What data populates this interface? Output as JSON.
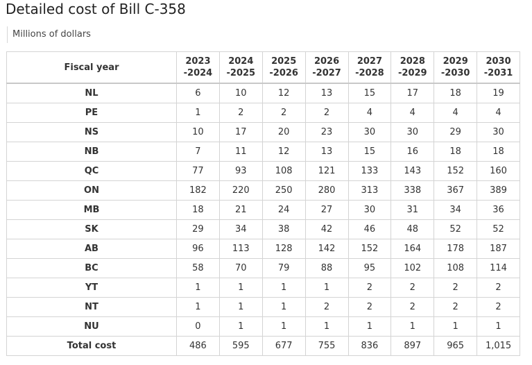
{
  "title": "Detailed cost of Bill C-358",
  "subtitle": "Millions of dollars",
  "table": {
    "header_label": "Fiscal year",
    "years": [
      [
        "2023",
        "-2024"
      ],
      [
        "2024",
        "-2025"
      ],
      [
        "2025",
        "-2026"
      ],
      [
        "2026",
        "-2027"
      ],
      [
        "2027",
        "-2028"
      ],
      [
        "2028",
        "-2029"
      ],
      [
        "2029",
        "-2030"
      ],
      [
        "2030",
        "-2031"
      ]
    ],
    "rows": [
      {
        "label": "NL",
        "values": [
          "6",
          "10",
          "12",
          "13",
          "15",
          "17",
          "18",
          "19"
        ]
      },
      {
        "label": "PE",
        "values": [
          "1",
          "2",
          "2",
          "2",
          "4",
          "4",
          "4",
          "4"
        ]
      },
      {
        "label": "NS",
        "values": [
          "10",
          "17",
          "20",
          "23",
          "30",
          "30",
          "29",
          "30"
        ]
      },
      {
        "label": "NB",
        "values": [
          "7",
          "11",
          "12",
          "13",
          "15",
          "16",
          "18",
          "18"
        ]
      },
      {
        "label": "QC",
        "values": [
          "77",
          "93",
          "108",
          "121",
          "133",
          "143",
          "152",
          "160"
        ]
      },
      {
        "label": "ON",
        "values": [
          "182",
          "220",
          "250",
          "280",
          "313",
          "338",
          "367",
          "389"
        ]
      },
      {
        "label": "MB",
        "values": [
          "18",
          "21",
          "24",
          "27",
          "30",
          "31",
          "34",
          "36"
        ]
      },
      {
        "label": "SK",
        "values": [
          "29",
          "34",
          "38",
          "42",
          "46",
          "48",
          "52",
          "52"
        ]
      },
      {
        "label": "AB",
        "values": [
          "96",
          "113",
          "128",
          "142",
          "152",
          "164",
          "178",
          "187"
        ]
      },
      {
        "label": "BC",
        "values": [
          "58",
          "70",
          "79",
          "88",
          "95",
          "102",
          "108",
          "114"
        ]
      },
      {
        "label": "YT",
        "values": [
          "1",
          "1",
          "1",
          "1",
          "2",
          "2",
          "2",
          "2"
        ]
      },
      {
        "label": "NT",
        "values": [
          "1",
          "1",
          "1",
          "2",
          "2",
          "2",
          "2",
          "2"
        ]
      },
      {
        "label": "NU",
        "values": [
          "0",
          "1",
          "1",
          "1",
          "1",
          "1",
          "1",
          "1"
        ]
      },
      {
        "label": "Total cost",
        "values": [
          "486",
          "595",
          "677",
          "755",
          "836",
          "897",
          "965",
          "1,015"
        ]
      }
    ]
  }
}
